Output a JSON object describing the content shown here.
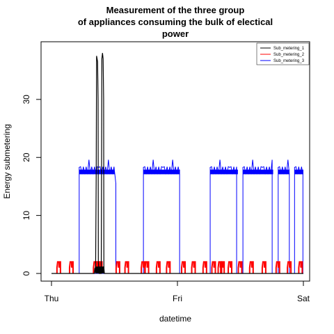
{
  "chart_data": {
    "type": "line",
    "title_lines": [
      "Measurement of the three group",
      "of appliances consuming the bulk of electical",
      "power"
    ],
    "xlabel": "datetime",
    "ylabel": "Energy submetering",
    "x_ticks": [
      {
        "value": 0,
        "label": "Thu"
      },
      {
        "value": 1,
        "label": "Fri"
      },
      {
        "value": 2,
        "label": "Sat"
      }
    ],
    "y_ticks": [
      0,
      10,
      20,
      30
    ],
    "xlim": [
      0,
      2
    ],
    "ylim": [
      0,
      38.5
    ],
    "legend_position": "top-right",
    "series": [
      {
        "name": "Sub_metering_1",
        "color": "#000000",
        "points": [
          [
            0,
            0
          ],
          [
            0.34,
            0
          ],
          [
            0.345,
            1
          ],
          [
            0.35,
            0
          ],
          [
            0.35,
            0
          ],
          [
            0.355,
            17
          ],
          [
            0.358,
            37.5
          ],
          [
            0.362,
            37
          ],
          [
            0.366,
            36.5
          ],
          [
            0.37,
            30
          ],
          [
            0.372,
            2
          ],
          [
            0.375,
            1
          ],
          [
            0.378,
            0
          ],
          [
            0.395,
            0
          ],
          [
            0.4,
            37
          ],
          [
            0.405,
            38
          ],
          [
            0.41,
            37
          ],
          [
            0.414,
            30
          ],
          [
            0.416,
            1
          ],
          [
            0.42,
            0
          ],
          [
            2,
            0
          ]
        ]
      },
      {
        "name": "Sub_metering_2",
        "color": "#ff0000",
        "pulses": [
          0.06,
          0.16,
          0.35,
          0.37,
          0.39,
          0.53,
          0.6,
          0.73,
          0.76,
          0.85,
          0.93,
          1.05,
          1.13,
          1.22,
          1.29,
          1.34,
          1.36,
          1.42,
          1.5,
          1.59,
          1.69,
          1.8,
          1.89,
          1.98
        ],
        "pulse_value": 2
      },
      {
        "name": "Sub_metering_3",
        "color": "#0000ff",
        "segments": [
          [
            0.22,
            0.5
          ],
          [
            0.73,
            1.02
          ],
          [
            1.26,
            1.48
          ],
          [
            1.52,
            1.76
          ],
          [
            1.8,
            1.89
          ],
          [
            1.93,
            2.0
          ]
        ],
        "plateau": 17.5,
        "tail_value": 15.5
      }
    ]
  }
}
